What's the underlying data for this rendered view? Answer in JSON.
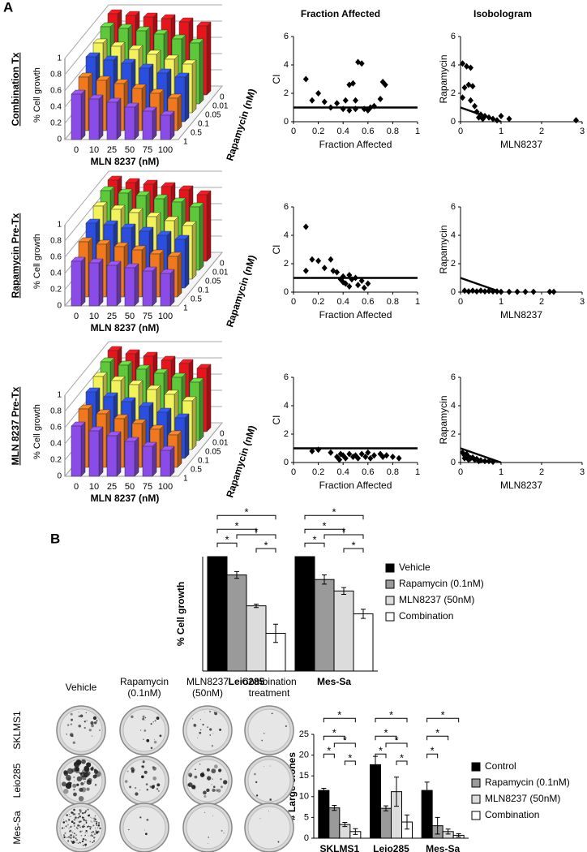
{
  "panel_labels": [
    "A",
    "B"
  ],
  "column_titles": [
    "Fraction Affected",
    "Isobologram"
  ],
  "chart_data": [
    {
      "type": "bar3d",
      "title": "Combination Tx",
      "categories": [
        "0",
        "10",
        "25",
        "50",
        "75",
        "100"
      ],
      "xlabel": "MLN 8237 (nM)",
      "ylabel": "% Cell growth",
      "zlabel": "Rapamycin (nM)",
      "ylim": [
        0,
        1
      ],
      "yticks": [
        0,
        0.2,
        0.4,
        0.6,
        0.8,
        1
      ],
      "series": [
        {
          "name": "0",
          "color": "#e8141c",
          "values": [
            1.0,
            0.98,
            0.96,
            0.94,
            0.9,
            0.85
          ]
        },
        {
          "name": "0.01",
          "color": "#5cc83a",
          "values": [
            0.95,
            0.93,
            0.9,
            0.86,
            0.8,
            0.75
          ]
        },
        {
          "name": "0.05",
          "color": "#f2f25a",
          "values": [
            0.86,
            0.82,
            0.78,
            0.72,
            0.66,
            0.6
          ]
        },
        {
          "name": "0.1",
          "color": "#2a4fe0",
          "values": [
            0.8,
            0.76,
            0.72,
            0.66,
            0.6,
            0.55
          ]
        },
        {
          "name": "0.5",
          "color": "#f2781e",
          "values": [
            0.66,
            0.62,
            0.58,
            0.52,
            0.46,
            0.4
          ]
        },
        {
          "name": "1",
          "color": "#8a4be8",
          "values": [
            0.56,
            0.5,
            0.46,
            0.4,
            0.35,
            0.3
          ]
        }
      ]
    },
    {
      "type": "bar3d",
      "title": "Rapamycin Pre-Tx",
      "categories": [
        "0",
        "10",
        "25",
        "50",
        "75",
        "100"
      ],
      "xlabel": "MLN 8237 (nM)",
      "ylabel": "% Cell growth",
      "zlabel": "Rapamycin (nM)",
      "ylim": [
        0,
        1
      ],
      "yticks": [
        0,
        0.2,
        0.4,
        0.6,
        0.8,
        1
      ],
      "series": [
        {
          "name": "0",
          "color": "#e8141c",
          "values": [
            1.0,
            0.97,
            0.95,
            0.92,
            0.88,
            0.82
          ]
        },
        {
          "name": "0.01",
          "color": "#5cc83a",
          "values": [
            0.98,
            0.95,
            0.92,
            0.88,
            0.84,
            0.78
          ]
        },
        {
          "name": "0.05",
          "color": "#f2f25a",
          "values": [
            0.9,
            0.86,
            0.82,
            0.77,
            0.72,
            0.66
          ]
        },
        {
          "name": "0.1",
          "color": "#2a4fe0",
          "values": [
            0.8,
            0.78,
            0.74,
            0.7,
            0.65,
            0.6
          ]
        },
        {
          "name": "0.5",
          "color": "#f2781e",
          "values": [
            0.68,
            0.65,
            0.62,
            0.58,
            0.53,
            0.5
          ]
        },
        {
          "name": "1",
          "color": "#8a4be8",
          "values": [
            0.55,
            0.53,
            0.5,
            0.47,
            0.43,
            0.4
          ]
        }
      ]
    },
    {
      "type": "bar3d",
      "title": "MLN 8237 Pre-Tx",
      "categories": [
        "0",
        "10",
        "25",
        "50",
        "75",
        "100"
      ],
      "xlabel": "MLN 8237 (nM)",
      "ylabel": "% Cell growth",
      "zlabel": "Rapamycin (nM)",
      "ylim": [
        0,
        1
      ],
      "yticks": [
        0,
        0.2,
        0.4,
        0.6,
        0.8,
        1
      ],
      "series": [
        {
          "name": "0",
          "color": "#e8141c",
          "values": [
            1.0,
            0.96,
            0.93,
            0.88,
            0.84,
            0.78
          ]
        },
        {
          "name": "0.01",
          "color": "#5cc83a",
          "values": [
            0.97,
            0.93,
            0.88,
            0.83,
            0.78,
            0.72
          ]
        },
        {
          "name": "0.05",
          "color": "#f2f25a",
          "values": [
            0.9,
            0.85,
            0.8,
            0.74,
            0.68,
            0.6
          ]
        },
        {
          "name": "0.1",
          "color": "#2a4fe0",
          "values": [
            0.82,
            0.76,
            0.7,
            0.64,
            0.57,
            0.5
          ]
        },
        {
          "name": "0.5",
          "color": "#f2781e",
          "values": [
            0.72,
            0.66,
            0.6,
            0.54,
            0.47,
            0.4
          ]
        },
        {
          "name": "1",
          "color": "#8a4be8",
          "values": [
            0.62,
            0.56,
            0.5,
            0.43,
            0.37,
            0.32
          ]
        }
      ]
    },
    {
      "type": "scatter",
      "ylabel": "CI",
      "xlabel": "Fraction Affected",
      "xlim": [
        0,
        1
      ],
      "xticks": [
        0,
        0.2,
        0.4,
        0.6,
        0.8,
        1
      ],
      "ylim": [
        0,
        6
      ],
      "yticks": [
        0,
        2,
        4,
        6
      ],
      "hline": 1,
      "color": "#000000",
      "x": [
        0.1,
        0.15,
        0.2,
        0.25,
        0.3,
        0.35,
        0.4,
        0.45,
        0.48,
        0.5,
        0.52,
        0.55,
        0.57,
        0.6,
        0.62,
        0.65,
        0.7,
        0.72,
        0.74,
        0.45,
        0.42,
        0.5
      ],
      "y": [
        3.0,
        1.5,
        2.0,
        1.4,
        1.0,
        1.3,
        0.9,
        2.6,
        2.7,
        1.5,
        4.2,
        4.1,
        0.9,
        0.8,
        1.0,
        1.1,
        1.6,
        2.8,
        2.6,
        0.8,
        1.5,
        0.9
      ]
    },
    {
      "type": "scatter",
      "ylabel": "Rapamycin",
      "xlabel": "MLN8237",
      "xlim": [
        0,
        3
      ],
      "xticks": [
        0,
        1,
        2,
        3
      ],
      "ylim": [
        0,
        6
      ],
      "yticks": [
        0,
        2,
        4,
        6
      ],
      "line": {
        "x": [
          0,
          1
        ],
        "y": [
          1,
          0
        ]
      },
      "color": "#000000",
      "x": [
        0.05,
        0.15,
        0.25,
        0.1,
        0.2,
        0.3,
        0.05,
        0.25,
        0.35,
        0.4,
        0.5,
        0.6,
        0.7,
        0.8,
        1.0,
        1.2,
        0.9,
        2.85,
        0.55,
        0.45
      ],
      "y": [
        4.1,
        3.9,
        3.8,
        2.4,
        2.6,
        2.5,
        1.7,
        1.5,
        1.1,
        0.7,
        0.5,
        0.4,
        0.3,
        0.2,
        0.4,
        0.2,
        0.1,
        0.1,
        0.2,
        0.3
      ]
    },
    {
      "type": "scatter",
      "ylabel": "CI",
      "xlabel": "Fraction Affected",
      "xlim": [
        0,
        1
      ],
      "xticks": [
        0,
        0.2,
        0.4,
        0.6,
        0.8,
        1
      ],
      "ylim": [
        0,
        6
      ],
      "yticks": [
        0,
        2,
        4,
        6
      ],
      "hline": 1,
      "color": "#000000",
      "x": [
        0.1,
        0.1,
        0.15,
        0.2,
        0.25,
        0.3,
        0.32,
        0.35,
        0.38,
        0.4,
        0.42,
        0.45,
        0.47,
        0.5,
        0.52,
        0.55,
        0.57,
        0.6,
        0.45,
        0.4
      ],
      "y": [
        4.6,
        1.5,
        2.3,
        2.2,
        1.7,
        2.3,
        1.5,
        1.4,
        0.9,
        1.1,
        0.6,
        1.2,
        0.9,
        1.0,
        0.5,
        0.8,
        0.3,
        0.6,
        0.4,
        0.7
      ]
    },
    {
      "type": "scatter",
      "ylabel": "Rapamycin",
      "xlabel": "MLN8237",
      "xlim": [
        0,
        3
      ],
      "xticks": [
        0,
        1,
        2,
        3
      ],
      "ylim": [
        0,
        6
      ],
      "yticks": [
        0,
        2,
        4,
        6
      ],
      "line": {
        "x": [
          0,
          1
        ],
        "y": [
          1,
          0
        ]
      },
      "color": "#000000",
      "x": [
        0.1,
        0.2,
        0.4,
        0.5,
        0.6,
        0.8,
        0.9,
        1.0,
        1.2,
        1.4,
        1.6,
        1.8,
        2.2,
        2.3,
        0.7,
        0.3
      ],
      "y": [
        0.1,
        0.05,
        0.05,
        0.1,
        0.05,
        0.05,
        0.05,
        0.02,
        0.02,
        0.02,
        0.02,
        0.02,
        0.02,
        0.02,
        0.08,
        0.1
      ]
    },
    {
      "type": "scatter",
      "ylabel": "CI",
      "xlabel": "Fraction Affected",
      "xlim": [
        0,
        1
      ],
      "xticks": [
        0,
        0.2,
        0.4,
        0.6,
        0.8,
        1
      ],
      "ylim": [
        0,
        6
      ],
      "yticks": [
        0,
        2,
        4,
        6
      ],
      "hline": 1,
      "color": "#000000",
      "x": [
        0.15,
        0.2,
        0.3,
        0.35,
        0.38,
        0.4,
        0.42,
        0.45,
        0.48,
        0.5,
        0.52,
        0.55,
        0.58,
        0.6,
        0.62,
        0.65,
        0.7,
        0.72,
        0.75,
        0.8,
        0.85,
        0.37
      ],
      "y": [
        0.8,
        0.9,
        0.7,
        0.4,
        0.6,
        0.5,
        0.3,
        0.6,
        0.4,
        0.5,
        0.3,
        0.6,
        0.4,
        0.7,
        0.3,
        0.5,
        0.6,
        0.4,
        0.5,
        0.4,
        0.3,
        0.2
      ]
    },
    {
      "type": "scatter",
      "ylabel": "Rapamycin",
      "xlabel": "MLN8237",
      "xlim": [
        0,
        3
      ],
      "xticks": [
        0,
        1,
        2,
        3
      ],
      "ylim": [
        0,
        6
      ],
      "yticks": [
        0,
        2,
        4,
        6
      ],
      "line": {
        "x": [
          0,
          1
        ],
        "y": [
          1,
          0
        ]
      },
      "color": "#000000",
      "x": [
        0.05,
        0.1,
        0.15,
        0.2,
        0.25,
        0.3,
        0.35,
        0.4,
        0.5,
        0.6,
        0.7,
        0.8,
        0.1,
        0.2,
        0.45
      ],
      "y": [
        0.7,
        0.5,
        0.6,
        0.4,
        0.3,
        0.35,
        0.2,
        0.25,
        0.15,
        0.1,
        0.1,
        0.05,
        0.3,
        0.2,
        0.1
      ]
    },
    {
      "type": "bar",
      "ylabel": "% Cell growth",
      "categories": [
        "Leio285",
        "Mes-Sa"
      ],
      "ylim": [
        0,
        1
      ],
      "series": [
        {
          "name": "Vehicle",
          "color": "#000000",
          "values": [
            1,
            1
          ],
          "errors": [
            0,
            0
          ]
        },
        {
          "name": "Rapamycin (0.1nM)",
          "color": "#9a9a9a",
          "values": [
            0.84,
            0.8
          ],
          "errors": [
            0.03,
            0.04
          ]
        },
        {
          "name": "MLN8237 (50nM)",
          "color": "#dcdcdc",
          "values": [
            0.57,
            0.7
          ],
          "errors": [
            0.015,
            0.03
          ]
        },
        {
          "name": "Combination",
          "color": "#ffffff",
          "values": [
            0.33,
            0.5
          ],
          "errors": [
            0.08,
            0.04
          ]
        }
      ],
      "significance": {
        "label": "*",
        "pairs": [
          [
            [
              0,
              3
            ],
            [
              0,
              2
            ],
            [
              0,
              1
            ],
            [
              1,
              3
            ],
            [
              2,
              3
            ]
          ],
          [
            [
              0,
              3
            ],
            [
              0,
              2
            ],
            [
              0,
              1
            ],
            [
              1,
              3
            ],
            [
              2,
              3
            ]
          ]
        ]
      }
    },
    {
      "type": "bar",
      "ylabel": "# Large clones",
      "categories": [
        "SKLMS1",
        "Leio285",
        "Mes-Sa"
      ],
      "ylim": [
        0,
        25
      ],
      "yticks": [
        0,
        5,
        10,
        15,
        20,
        25
      ],
      "series": [
        {
          "name": "Control",
          "color": "#000000",
          "values": [
            11.5,
            17.7,
            11.5
          ],
          "errors": [
            0.5,
            2,
            2
          ]
        },
        {
          "name": "Rapamycin (0.1nM)",
          "color": "#9a9a9a",
          "values": [
            7.3,
            7.2,
            3
          ],
          "errors": [
            0.6,
            0.6,
            2
          ]
        },
        {
          "name": "MLN8237 (50nM)",
          "color": "#dcdcdc",
          "values": [
            3.3,
            11.2,
            1.6
          ],
          "errors": [
            0.5,
            3.5,
            0.6
          ]
        },
        {
          "name": "Combination",
          "color": "#ffffff",
          "values": [
            1.6,
            3.9,
            0.7
          ],
          "errors": [
            0.7,
            1.7,
            0.4
          ]
        }
      ],
      "significance": {
        "label": "*",
        "pairs": [
          [
            [
              0,
              3
            ],
            [
              0,
              2
            ],
            [
              0,
              1
            ],
            [
              1,
              3
            ],
            [
              2,
              3
            ]
          ],
          [
            [
              0,
              3
            ],
            [
              0,
              2
            ],
            [
              0,
              1
            ],
            [
              1,
              3
            ],
            [
              2,
              3
            ]
          ],
          [
            [
              0,
              3
            ],
            [
              0,
              2
            ],
            [
              0,
              1
            ]
          ]
        ]
      }
    }
  ],
  "colony_images": {
    "columns": [
      [
        "Vehicle"
      ],
      [
        "Rapamycin",
        "(0.1nM)"
      ],
      [
        "MLN8237",
        "(50nM)"
      ],
      [
        "Combination",
        "treatment"
      ]
    ],
    "rows": [
      "SKLMS1",
      "Leio285",
      "Mes-Sa"
    ]
  }
}
